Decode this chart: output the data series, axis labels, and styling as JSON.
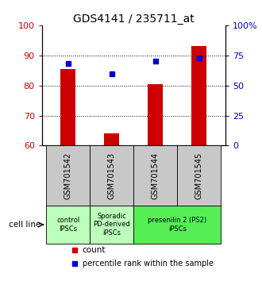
{
  "title": "GDS4141 / 235711_at",
  "samples": [
    "GSM701542",
    "GSM701543",
    "GSM701544",
    "GSM701545"
  ],
  "counts": [
    85.5,
    64.0,
    80.5,
    93.0
  ],
  "percentiles": [
    68.0,
    60.0,
    70.0,
    73.0
  ],
  "ylim_left": [
    60,
    100
  ],
  "ylim_right": [
    0,
    100
  ],
  "yticks_left": [
    60,
    70,
    80,
    90,
    100
  ],
  "yticks_right": [
    0,
    25,
    50,
    75,
    100
  ],
  "ytick_labels_right": [
    "0",
    "25",
    "50",
    "75",
    "100%"
  ],
  "gridlines": [
    70,
    80,
    90
  ],
  "bar_color": "#cc0000",
  "dot_color": "#0000cc",
  "bar_bottom": 60,
  "sample_box_color": "#c8c8c8",
  "legend_count_color": "#cc0000",
  "legend_dot_color": "#0000cc",
  "cell_line_label": "cell line",
  "groups": [
    {
      "start": 0,
      "end": 0,
      "color": "#bbffbb",
      "label": "control\nIPSCs"
    },
    {
      "start": 1,
      "end": 1,
      "color": "#bbffbb",
      "label": "Sporadic\nPD-derived\niPSCs"
    },
    {
      "start": 2,
      "end": 3,
      "color": "#55ee55",
      "label": "presenilin 2 (PS2)\niPSCs"
    }
  ]
}
